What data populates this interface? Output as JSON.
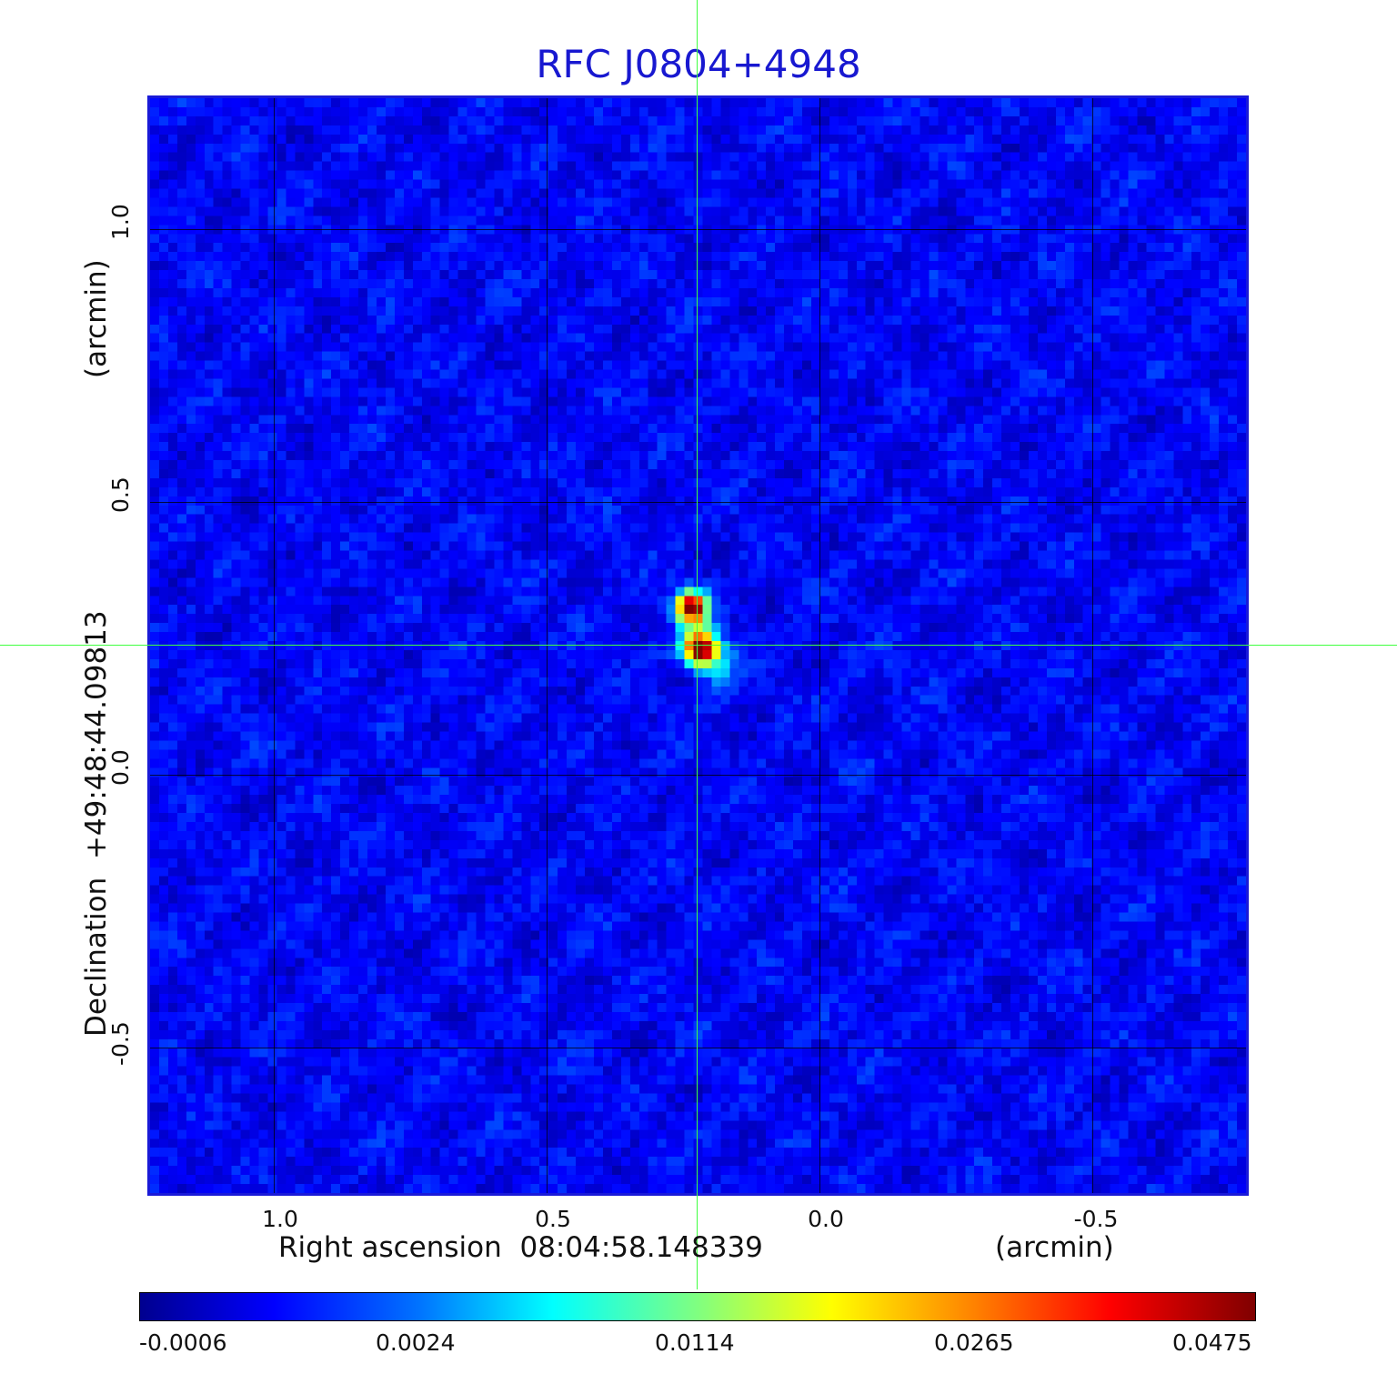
{
  "title": "RFC J0804+4948",
  "axes": {
    "x_label": "Right ascension  08:04:58.148339",
    "x_unit": "(arcmin)",
    "y_label": "Declination  +49:48:44.09813",
    "y_unit": "(arcmin)",
    "x_ticks": [
      "1.0",
      "0.5",
      "0.0",
      "-0.5"
    ],
    "y_ticks": [
      "1.0",
      "0.5",
      "0.0",
      "-0.5"
    ]
  },
  "colorbar": {
    "ticks": [
      "-0.0006",
      "0.0024",
      "0.0114",
      "0.0265",
      "0.0475"
    ]
  },
  "colors": {
    "title": "#1818d0",
    "frame": "#1a1ad8",
    "crosshair": "#40ff40"
  },
  "image": {
    "description_icon": "radio-source-intensity-map",
    "colormap": "jet"
  }
}
